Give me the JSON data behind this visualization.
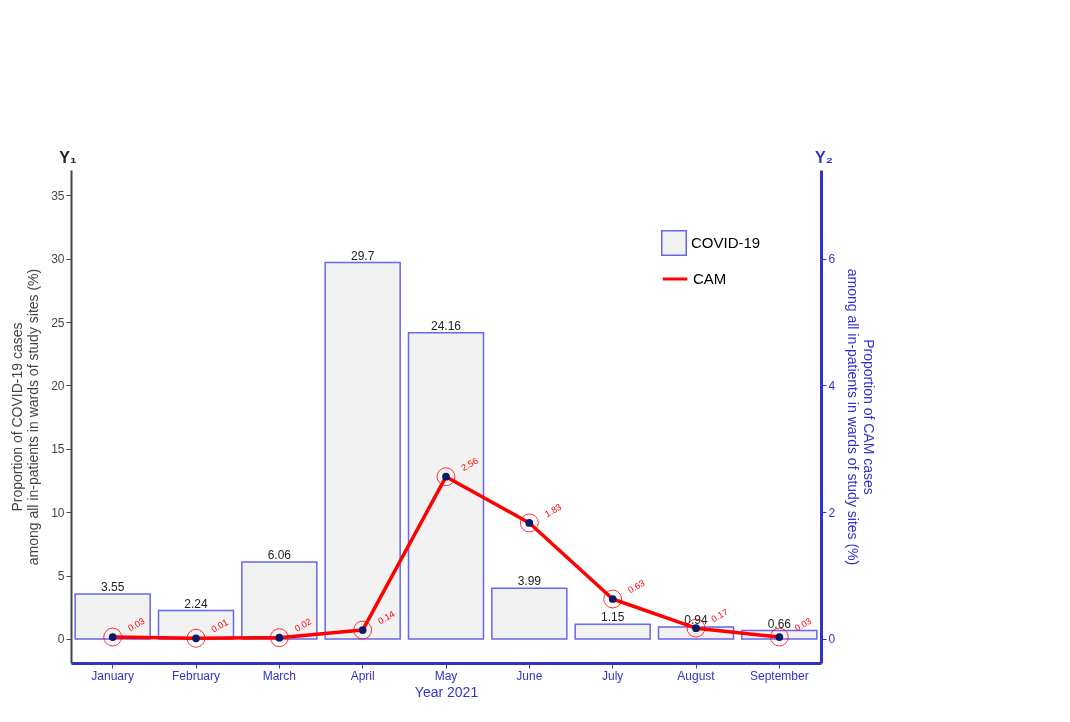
{
  "chart_data": {
    "type": "bar",
    "xlabel": "Year 2021",
    "ylabel": "Proportion of COVID-19 cases\namong all in-patients in wards of study sites (%)",
    "y2label": "Proportion of CAM cases\namong all in-patients in wards of study sites (%)",
    "annotations": [
      "Y₁",
      "Y₂"
    ],
    "categories": [
      "January",
      "February",
      "March",
      "April",
      "May",
      "June",
      "July",
      "August",
      "September"
    ],
    "series": [
      {
        "name": "COVID-19",
        "color": "#f2f2f2",
        "values": [
          3.55,
          2.24,
          6.06,
          29.7,
          24.16,
          3.99,
          1.15,
          0.94,
          0.66
        ]
      },
      {
        "name": "CAM",
        "type": "line",
        "axis": "y2",
        "color": "#ff0000",
        "values": [
          0.03,
          0.01,
          0.02,
          0.14,
          2.56,
          1.83,
          0.63,
          0.17,
          0.03
        ]
      }
    ],
    "ylim": [
      -1.9,
      37
    ],
    "yticks": [
      0,
      5,
      10,
      15,
      20,
      25,
      30,
      35
    ],
    "y2lim": [
      -0.38,
      7.4
    ],
    "y2ticks": [
      0,
      2,
      4,
      6
    ],
    "data_labels": true,
    "legend": "top right",
    "marker": "circle",
    "grid": false
  }
}
